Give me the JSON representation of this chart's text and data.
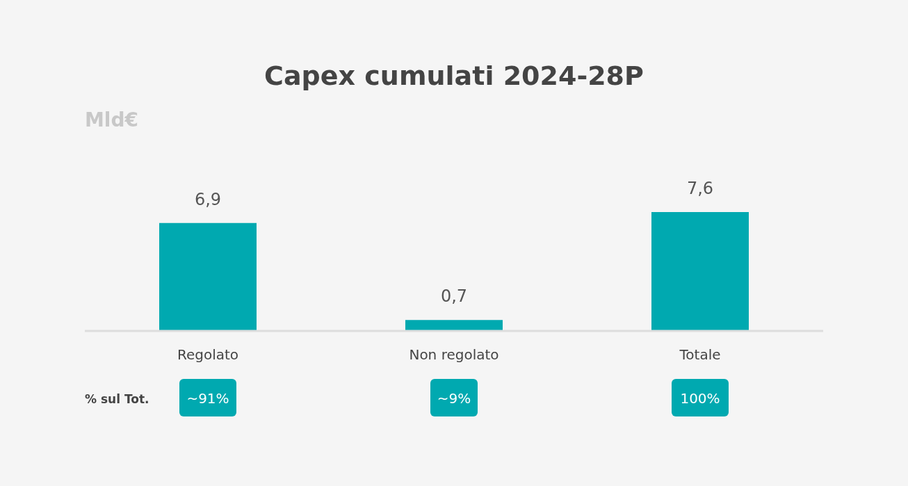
{
  "chart_data": {
    "type": "bar",
    "title": "Capex cumulati 2024-28P",
    "ylabel": "Mld€",
    "categories": [
      "Regolato",
      "Non regolato",
      "Totale"
    ],
    "values": [
      6.9,
      0.7,
      7.6
    ],
    "value_labels": [
      "6,9",
      "0,7",
      "7,6"
    ],
    "color": "#00a9b0",
    "tick_labels": "x",
    "annotations": [
      "% sul Tot.",
      "~91%",
      "~9%",
      "100%"
    ]
  }
}
